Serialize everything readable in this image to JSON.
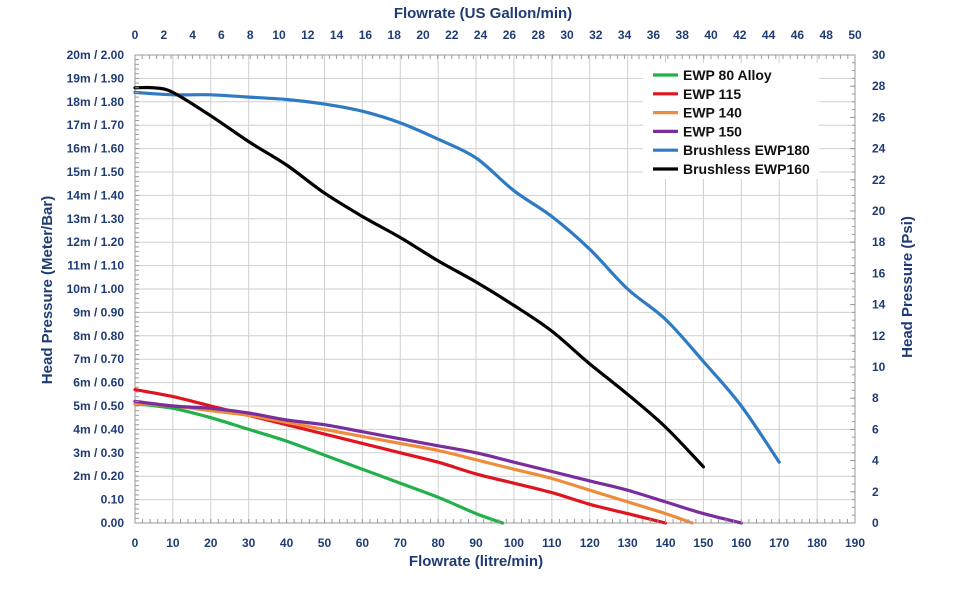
{
  "chart_data": {
    "type": "line",
    "bottom_axis": {
      "title": "Flowrate (litre/min)",
      "range": [
        0,
        190
      ],
      "ticks": [
        "0",
        "10",
        "20",
        "30",
        "40",
        "50",
        "60",
        "70",
        "80",
        "90",
        "100",
        "110",
        "120",
        "130",
        "140",
        "150",
        "160",
        "170",
        "180",
        "190"
      ]
    },
    "top_axis": {
      "title": "Flowrate (US Gallon/min)",
      "range": [
        0,
        50
      ],
      "ticks": [
        "0",
        "2",
        "4",
        "6",
        "8",
        "10",
        "12",
        "14",
        "16",
        "18",
        "20",
        "22",
        "24",
        "26",
        "28",
        "30",
        "32",
        "34",
        "36",
        "38",
        "40",
        "42",
        "44",
        "46",
        "48",
        "50"
      ]
    },
    "left_axis": {
      "title": "Head Pressure (Meter/Bar)",
      "range": [
        0,
        2.0
      ],
      "ticks": [
        "0.00",
        "0.10",
        "2m / 0.20",
        "3m / 0.30",
        "4m / 0.40",
        "5m / 0.50",
        "6m / 0.60",
        "7m / 0.70",
        "8m / 0.80",
        "9m / 0.90",
        "10m / 1.00",
        "11m / 1.10",
        "12m / 1.20",
        "13m / 1.30",
        "14m / 1.40",
        "15m / 1.50",
        "16m / 1.60",
        "17m / 1.70",
        "18m / 1.80",
        "19m / 1.90",
        "20m / 2.00"
      ]
    },
    "right_axis": {
      "title": "Head Pressure (Psi)",
      "range": [
        0,
        30
      ],
      "ticks": [
        "0",
        "2",
        "4",
        "6",
        "8",
        "10",
        "12",
        "14",
        "16",
        "18",
        "20",
        "22",
        "24",
        "26",
        "28",
        "30"
      ]
    },
    "grid": true,
    "legend_position": "top-right",
    "series": [
      {
        "name": "EWP 80 Alloy",
        "color": "#22b04b",
        "points": [
          [
            0,
            0.51
          ],
          [
            10,
            0.49
          ],
          [
            20,
            0.45
          ],
          [
            30,
            0.4
          ],
          [
            40,
            0.35
          ],
          [
            50,
            0.29
          ],
          [
            60,
            0.23
          ],
          [
            70,
            0.17
          ],
          [
            80,
            0.11
          ],
          [
            90,
            0.04
          ],
          [
            97,
            0.0
          ]
        ]
      },
      {
        "name": "EWP 115",
        "color": "#e0141e",
        "points": [
          [
            0,
            0.57
          ],
          [
            10,
            0.54
          ],
          [
            20,
            0.5
          ],
          [
            30,
            0.46
          ],
          [
            40,
            0.42
          ],
          [
            50,
            0.38
          ],
          [
            60,
            0.34
          ],
          [
            70,
            0.3
          ],
          [
            80,
            0.26
          ],
          [
            90,
            0.21
          ],
          [
            100,
            0.17
          ],
          [
            110,
            0.13
          ],
          [
            120,
            0.08
          ],
          [
            130,
            0.04
          ],
          [
            140,
            0.0
          ]
        ]
      },
      {
        "name": "EWP 140",
        "color": "#ef8c3b",
        "points": [
          [
            0,
            0.51
          ],
          [
            10,
            0.5
          ],
          [
            20,
            0.48
          ],
          [
            30,
            0.46
          ],
          [
            40,
            0.43
          ],
          [
            50,
            0.4
          ],
          [
            60,
            0.37
          ],
          [
            70,
            0.34
          ],
          [
            80,
            0.31
          ],
          [
            90,
            0.27
          ],
          [
            100,
            0.23
          ],
          [
            110,
            0.19
          ],
          [
            120,
            0.14
          ],
          [
            130,
            0.09
          ],
          [
            140,
            0.04
          ],
          [
            147,
            0.0
          ]
        ]
      },
      {
        "name": "EWP 150",
        "color": "#7a2e9e",
        "points": [
          [
            0,
            0.52
          ],
          [
            10,
            0.5
          ],
          [
            20,
            0.49
          ],
          [
            30,
            0.47
          ],
          [
            40,
            0.44
          ],
          [
            50,
            0.42
          ],
          [
            60,
            0.39
          ],
          [
            70,
            0.36
          ],
          [
            80,
            0.33
          ],
          [
            90,
            0.3
          ],
          [
            100,
            0.26
          ],
          [
            110,
            0.22
          ],
          [
            120,
            0.18
          ],
          [
            130,
            0.14
          ],
          [
            140,
            0.09
          ],
          [
            150,
            0.04
          ],
          [
            160,
            0.0
          ]
        ]
      },
      {
        "name": "Brushless EWP180",
        "color": "#2e7bc4",
        "points": [
          [
            0,
            1.84
          ],
          [
            10,
            1.83
          ],
          [
            20,
            1.83
          ],
          [
            30,
            1.82
          ],
          [
            40,
            1.81
          ],
          [
            50,
            1.79
          ],
          [
            60,
            1.76
          ],
          [
            70,
            1.71
          ],
          [
            80,
            1.64
          ],
          [
            90,
            1.56
          ],
          [
            100,
            1.42
          ],
          [
            110,
            1.31
          ],
          [
            120,
            1.17
          ],
          [
            130,
            1.0
          ],
          [
            140,
            0.87
          ],
          [
            150,
            0.69
          ],
          [
            160,
            0.5
          ],
          [
            170,
            0.26
          ]
        ]
      },
      {
        "name": "Brushless EWP160",
        "color": "#000000",
        "points": [
          [
            0,
            1.86
          ],
          [
            5,
            1.86
          ],
          [
            10,
            1.84
          ],
          [
            20,
            1.74
          ],
          [
            30,
            1.63
          ],
          [
            40,
            1.53
          ],
          [
            50,
            1.41
          ],
          [
            60,
            1.31
          ],
          [
            70,
            1.22
          ],
          [
            80,
            1.12
          ],
          [
            90,
            1.03
          ],
          [
            100,
            0.93
          ],
          [
            110,
            0.82
          ],
          [
            120,
            0.68
          ],
          [
            130,
            0.55
          ],
          [
            140,
            0.41
          ],
          [
            150,
            0.24
          ]
        ]
      }
    ]
  }
}
